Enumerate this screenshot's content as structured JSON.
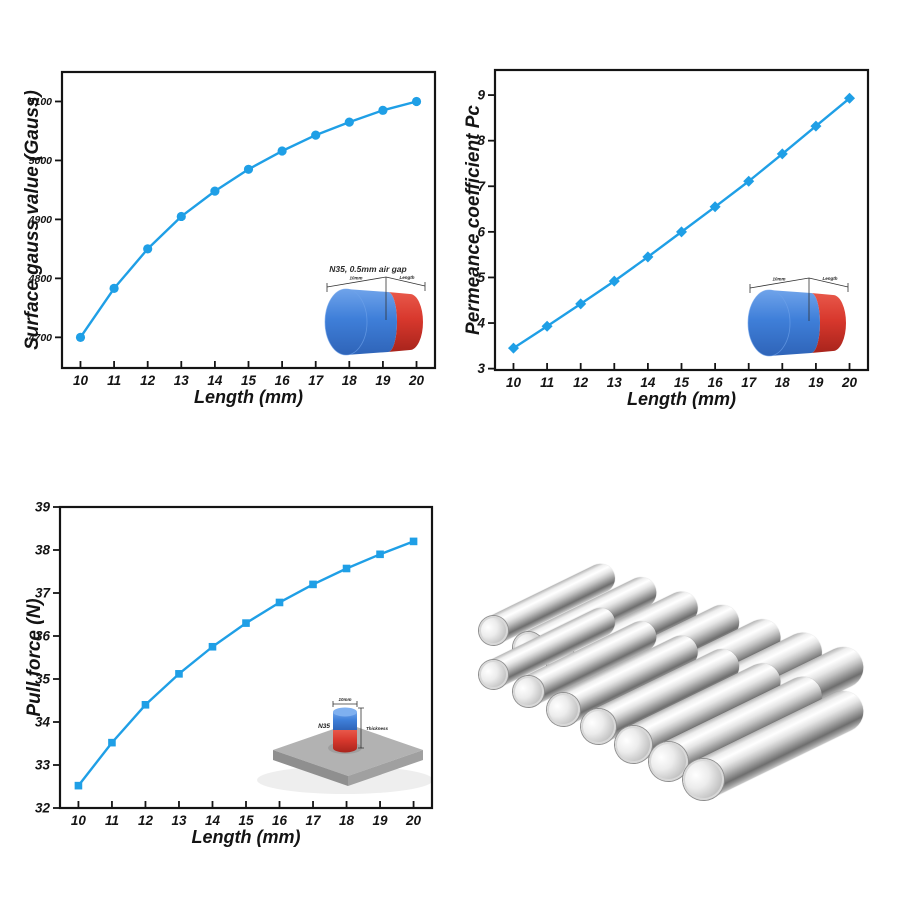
{
  "colors": {
    "line_blue": "#1F9FE6",
    "magnet_blue": "#3F7FD9",
    "magnet_blue_light": "#7FB0F0",
    "magnet_red": "#D8382D",
    "magnet_red_dark": "#B02A20",
    "plate_top": "#B2B2B2",
    "plate_left": "#8F8F8F",
    "plate_right": "#A0A0A0",
    "axis": "#141414"
  },
  "chart_data": [
    {
      "type": "line",
      "id": "surface-gauss",
      "xlabel": "Length (mm)",
      "ylabel": "Surface gauss value (Gauss)",
      "marker": "circle",
      "x": [
        10,
        11,
        12,
        13,
        14,
        15,
        16,
        17,
        18,
        19,
        20
      ],
      "y": [
        4700,
        4783,
        4850,
        4905,
        4948,
        4985,
        5016,
        5043,
        5065,
        5085,
        5100
      ],
      "xticks": [
        "10",
        "11",
        "12",
        "13",
        "14",
        "15",
        "16",
        "17",
        "18",
        "19",
        "20"
      ],
      "yticks": [
        "4700",
        "4800",
        "4900",
        "5000",
        "5100"
      ],
      "xlim": [
        9.45,
        20.55
      ],
      "ylim": [
        4648,
        5150
      ],
      "grid": false,
      "legend": "none",
      "inset": {
        "type": "horizontal-cylinder-magnet",
        "caption": "N35, 0.5mm air gap",
        "labels": {
          "diameter": "10mm",
          "length": "Length"
        }
      }
    },
    {
      "type": "line",
      "id": "permeance-coefficient",
      "xlabel": "Length (mm)",
      "ylabel": "Permeance coefficient Pc",
      "marker": "diamond",
      "x": [
        10,
        11,
        12,
        13,
        14,
        15,
        16,
        17,
        18,
        19,
        20
      ],
      "y": [
        3.45,
        3.93,
        4.42,
        4.92,
        5.45,
        6.0,
        6.55,
        7.11,
        7.71,
        8.32,
        8.93
      ],
      "xticks": [
        "10",
        "11",
        "12",
        "13",
        "14",
        "15",
        "16",
        "17",
        "18",
        "19",
        "20"
      ],
      "yticks": [
        "3",
        "4",
        "5",
        "6",
        "7",
        "8",
        "9"
      ],
      "xlim": [
        9.45,
        20.55
      ],
      "ylim": [
        2.97,
        9.55
      ],
      "grid": false,
      "legend": "none",
      "inset": {
        "type": "horizontal-cylinder-magnet",
        "caption": "",
        "labels": {
          "diameter": "10mm",
          "length": "Length"
        }
      }
    },
    {
      "type": "line",
      "id": "pull-force",
      "xlabel": "Length (mm)",
      "ylabel": "Pull force (N)",
      "marker": "square",
      "x": [
        10,
        11,
        12,
        13,
        14,
        15,
        16,
        17,
        18,
        19,
        20
      ],
      "y": [
        32.52,
        33.52,
        34.4,
        35.12,
        35.75,
        36.3,
        36.78,
        37.2,
        37.57,
        37.9,
        38.2
      ],
      "xticks": [
        "10",
        "11",
        "12",
        "13",
        "14",
        "15",
        "16",
        "17",
        "18",
        "19",
        "20"
      ],
      "yticks": [
        "32",
        "33",
        "34",
        "35",
        "36",
        "37",
        "38",
        "39"
      ],
      "xlim": [
        9.45,
        20.55
      ],
      "ylim": [
        32,
        39
      ],
      "grid": false,
      "legend": "none",
      "inset": {
        "type": "magnet-on-steel-plate",
        "caption": "",
        "labels": {
          "grade": "N35",
          "diameter": "10mm",
          "thickness": "Thickness"
        }
      }
    }
  ],
  "photo": {
    "description": "stacked silver neodymium cylinder magnets",
    "rows": 2,
    "columns": 7
  }
}
